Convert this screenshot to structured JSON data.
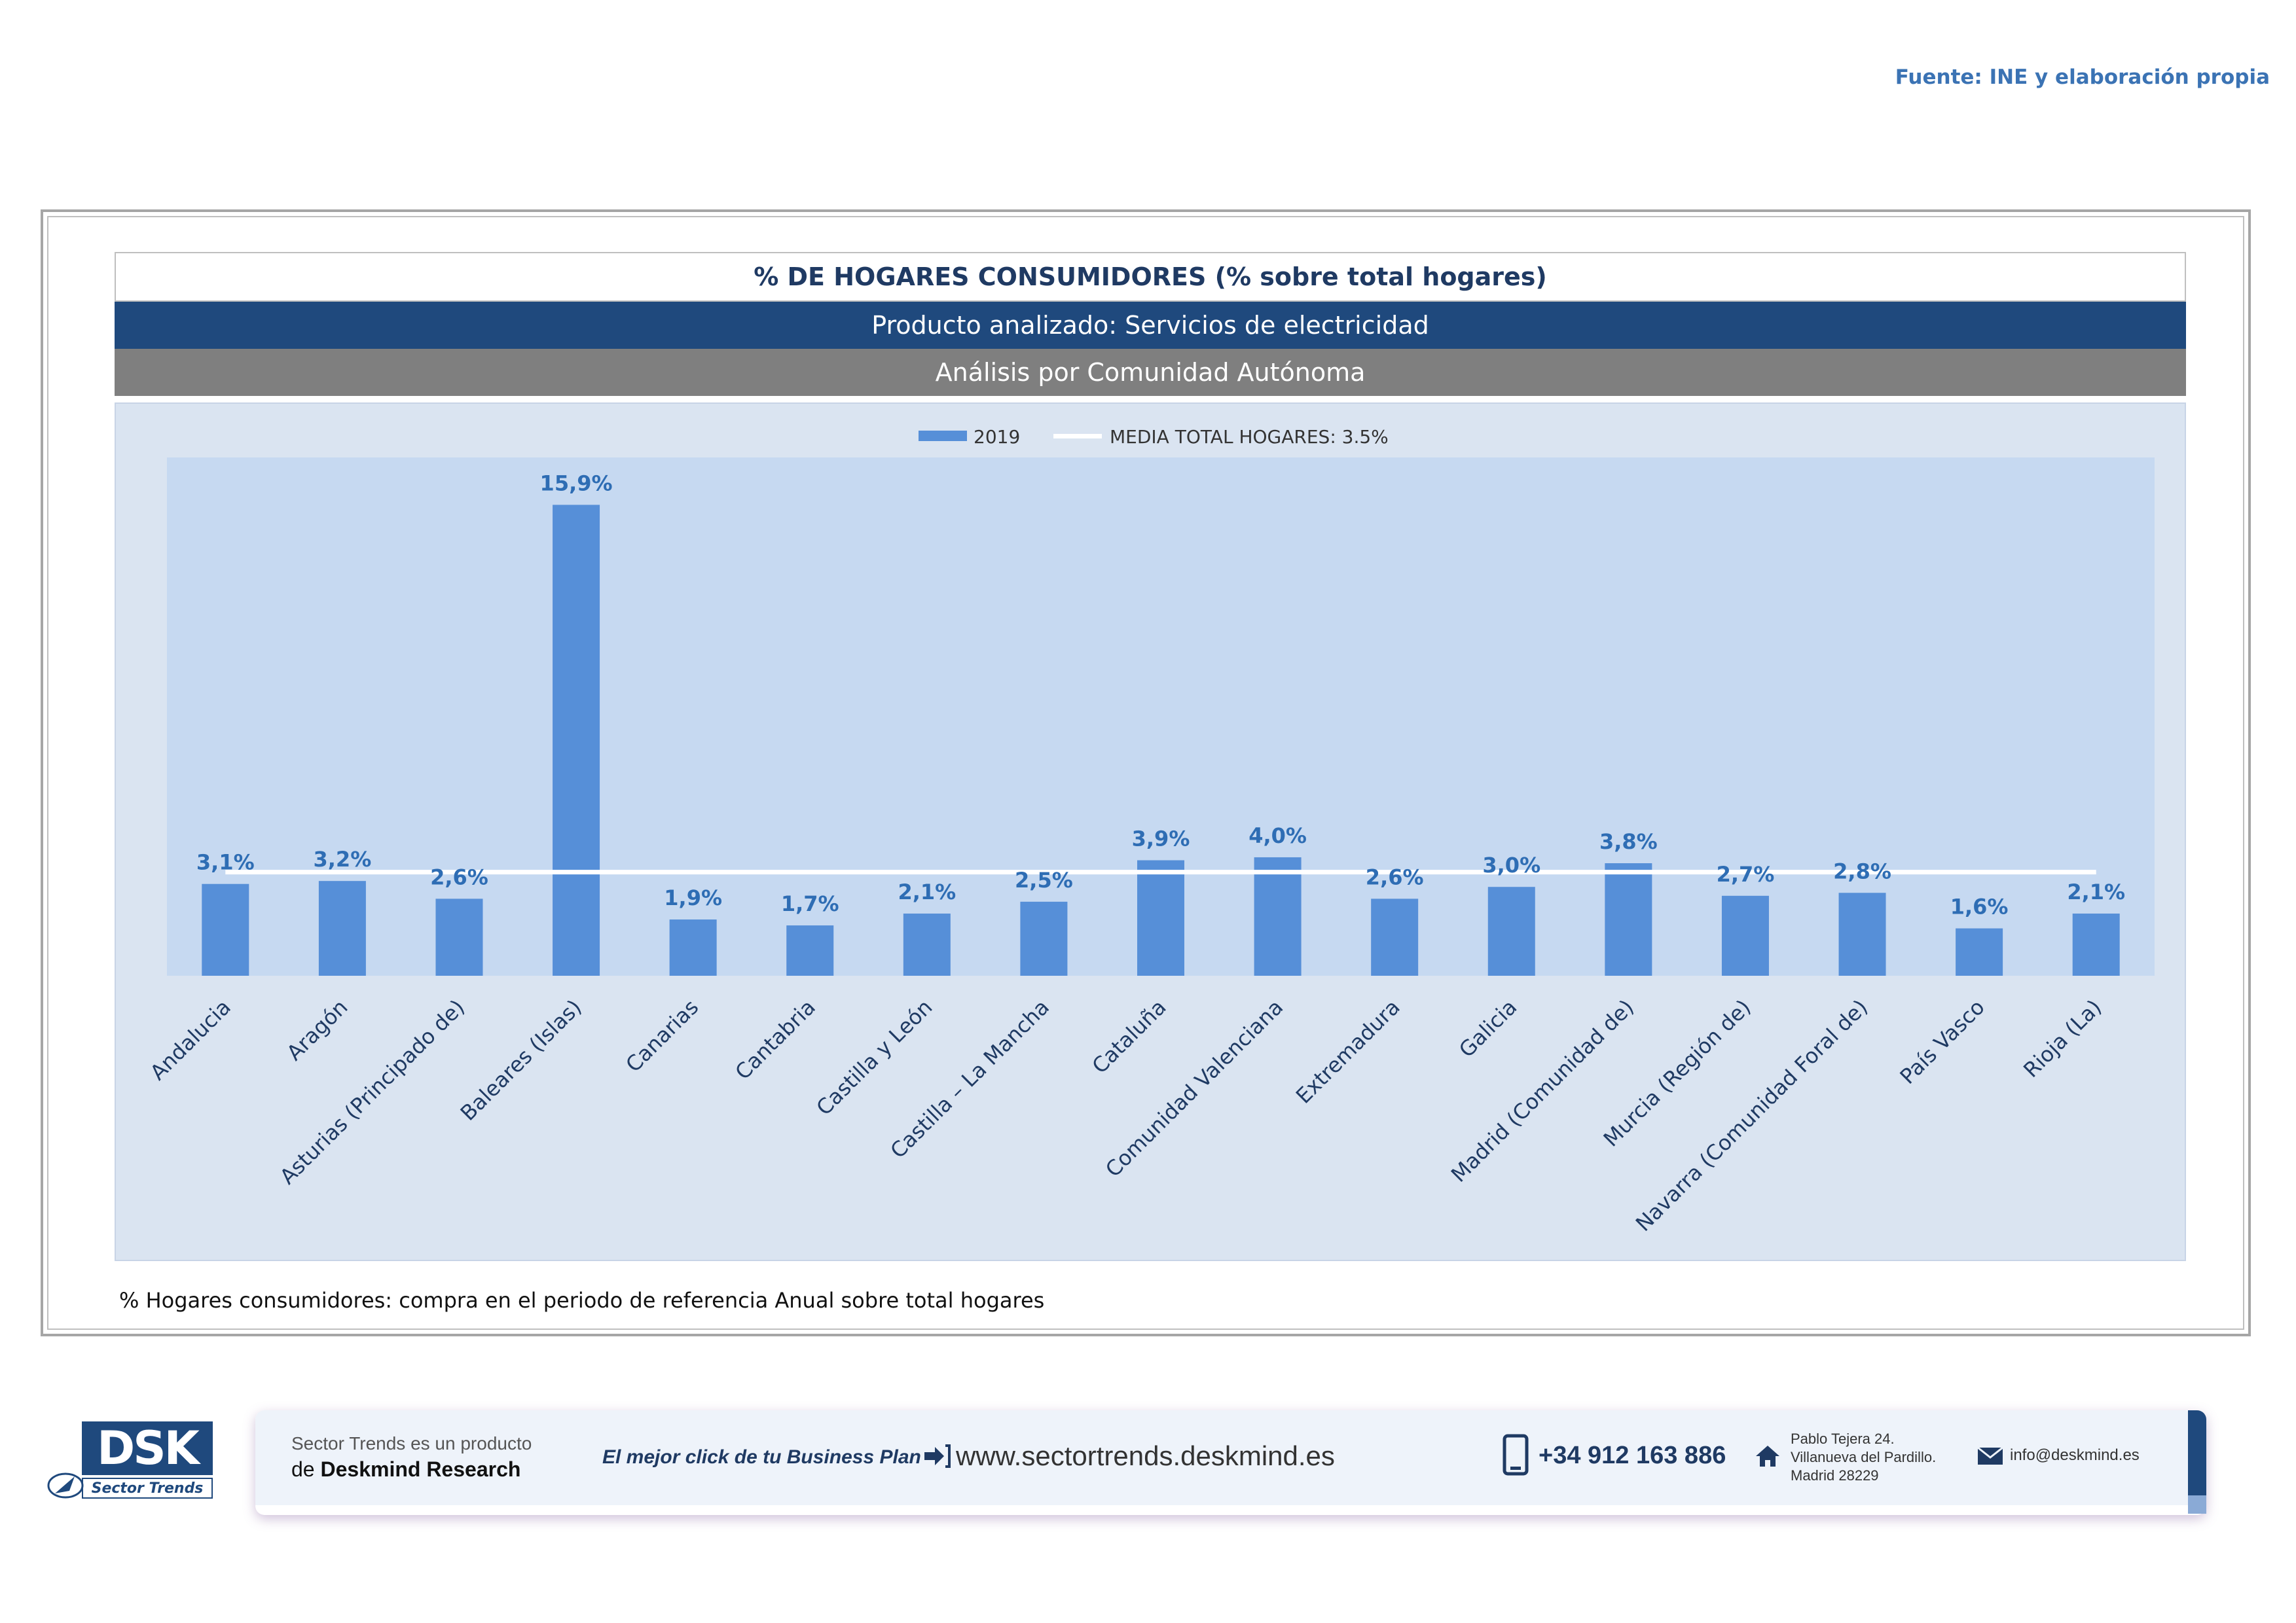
{
  "source": "Fuente: INE y elaboración propia",
  "header": {
    "title": "% DE HOGARES CONSUMIDORES (% sobre total hogares)",
    "product": "Producto analizado: Servicios de electricidad",
    "analysis": "Análisis por Comunidad Autónoma"
  },
  "legend": {
    "series": "2019",
    "average": "MEDIA TOTAL  HOGARES:  3.5%"
  },
  "chart_data": {
    "type": "bar",
    "categories": [
      "Andalucia",
      "Aragón",
      "Asturias (Principado de)",
      "Baleares (Islas)",
      "Canarias",
      "Cantabria",
      "Castilla y León",
      "Castilla – La Mancha",
      "Cataluña",
      "Comunidad Valenciana",
      "Extremadura",
      "Galicia",
      "Madrid (Comunidad de)",
      "Murcia (Región de)",
      "Navarra (Comunidad Foral de)",
      "País Vasco",
      "Rioja (La)"
    ],
    "series": [
      {
        "name": "2019",
        "values": [
          3.1,
          3.2,
          2.6,
          15.9,
          1.9,
          1.7,
          2.1,
          2.5,
          3.9,
          4.0,
          2.6,
          3.0,
          3.8,
          2.7,
          2.8,
          1.6,
          2.1
        ]
      }
    ],
    "data_labels": [
      "3,1%",
      "3,2%",
      "2,6%",
      "15,9%",
      "1,9%",
      "1,7%",
      "2,1%",
      "2,5%",
      "3,9%",
      "4,0%",
      "2,6%",
      "3,0%",
      "3,8%",
      "2,7%",
      "2,8%",
      "1,6%",
      "2,1%"
    ],
    "average_line": 3.5,
    "ylim": [
      0,
      17.5
    ],
    "legend_position": "top",
    "colors": {
      "bar": "#568fd8",
      "average": "#ffffff",
      "plot_bg": "#c6d9f1",
      "label": "#2e6db4"
    }
  },
  "footnote": "% Hogares consumidores: compra en el periodo de referencia Anual sobre total hogares",
  "footer": {
    "logo_text": "DSK",
    "logo_sub": "Sector Trends",
    "product_line1": "Sector Trends es un producto",
    "product_line2_prefix": "de ",
    "product_line2_brand": "Deskmind Research",
    "slogan": "El mejor click de tu Business Plan",
    "website": "www.sectortrends.deskmind.es",
    "phone": "+34 912 163 886",
    "address_line1": "Pablo Tejera 24.",
    "address_line2": "Villanueva del Pardillo.",
    "address_line3": "Madrid 28229",
    "email": "info@deskmind.es"
  }
}
